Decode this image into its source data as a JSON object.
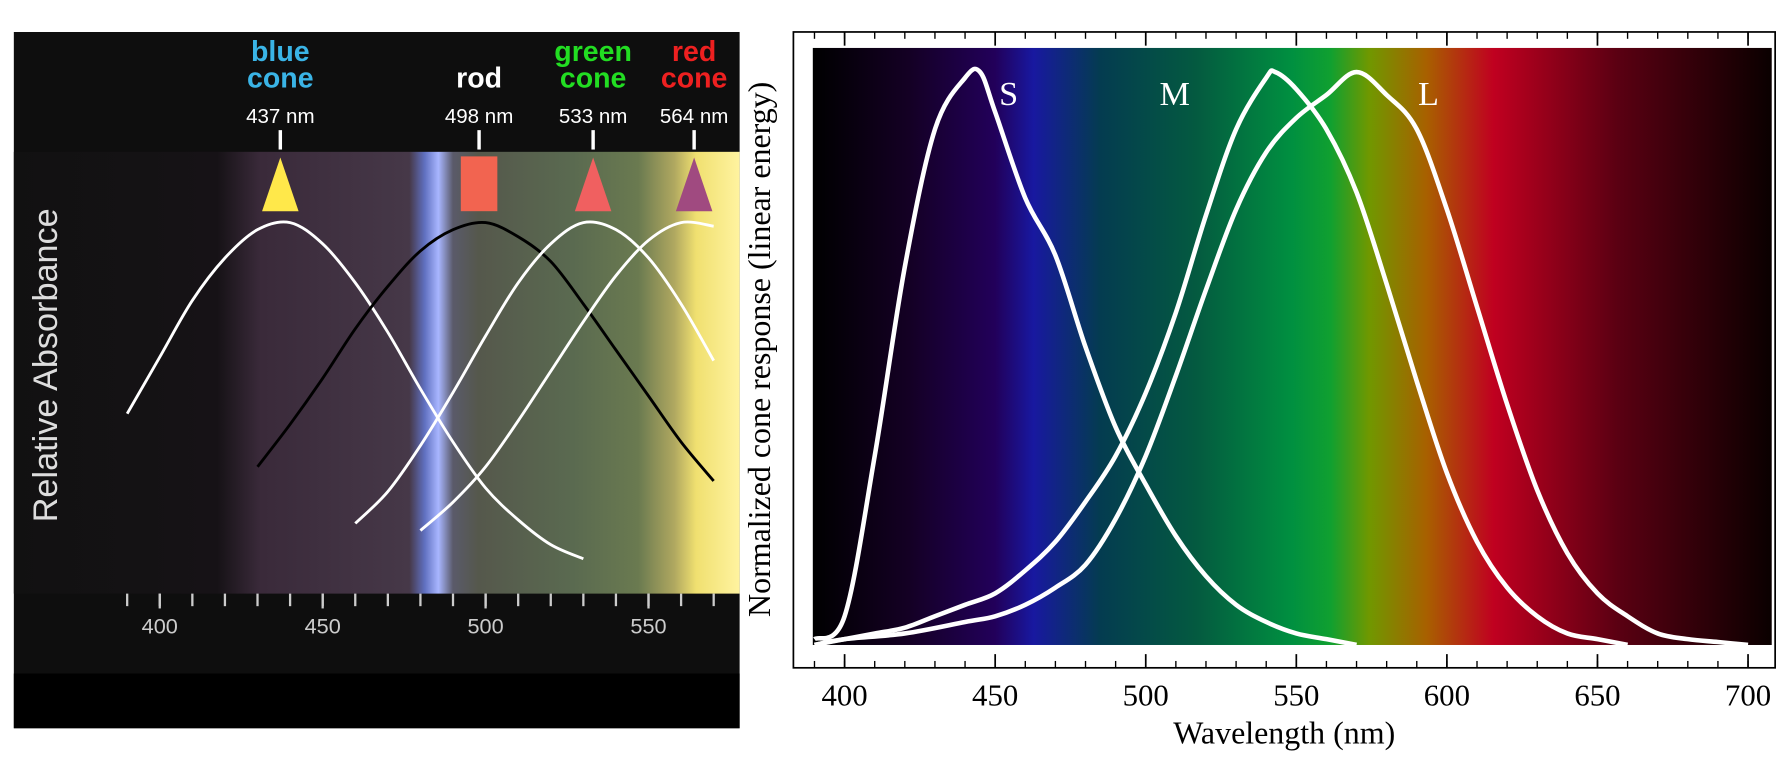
{
  "chart_data": [
    {
      "type": "line",
      "ylabel": "Relative Absorbance",
      "xlim": [
        379,
        578
      ],
      "ylim": [
        0,
        1.2
      ],
      "xticks": [
        400,
        450,
        500,
        550
      ],
      "xminorticks": [
        390,
        400,
        410,
        420,
        430,
        440,
        450,
        460,
        470,
        480,
        490,
        500,
        510,
        520,
        530,
        540,
        550,
        560,
        570
      ],
      "markers": [
        {
          "name_lines": [
            "blue",
            "cone"
          ],
          "label": "437 nm",
          "x": 437,
          "color": "#ffe84a",
          "text_color": "#3ab4e6",
          "shape": "triangle"
        },
        {
          "name_lines": [
            "rod"
          ],
          "label": "498 nm",
          "x": 498,
          "color": "#f26450",
          "text_color": "#ffffff",
          "shape": "square"
        },
        {
          "name_lines": [
            "green",
            "cone"
          ],
          "label": "533 nm",
          "x": 533,
          "color": "#f06060",
          "text_color": "#22dd22",
          "shape": "triangle"
        },
        {
          "name_lines": [
            "red",
            "cone"
          ],
          "label": "564 nm",
          "x": 564,
          "color": "#a04a80",
          "text_color": "#ee2020",
          "shape": "triangle"
        }
      ],
      "series": [
        {
          "color": "#ffffff",
          "x": [
            390,
            400,
            410,
            420,
            430,
            440,
            450,
            460,
            470,
            480,
            490,
            500,
            510,
            520,
            530
          ],
          "values": [
            0.46,
            0.62,
            0.78,
            0.9,
            0.98,
            1.0,
            0.94,
            0.83,
            0.69,
            0.53,
            0.38,
            0.25,
            0.16,
            0.09,
            0.05
          ]
        },
        {
          "color": "#000000",
          "x": [
            430,
            440,
            450,
            460,
            470,
            480,
            490,
            500,
            510,
            520,
            530,
            540,
            550,
            560,
            570
          ],
          "values": [
            0.31,
            0.43,
            0.56,
            0.7,
            0.82,
            0.92,
            0.98,
            1.0,
            0.96,
            0.89,
            0.77,
            0.64,
            0.51,
            0.38,
            0.27
          ]
        },
        {
          "color": "#ffffff",
          "x": [
            460,
            470,
            480,
            490,
            500,
            510,
            520,
            530,
            540,
            550,
            560,
            570
          ],
          "values": [
            0.15,
            0.24,
            0.37,
            0.52,
            0.68,
            0.83,
            0.94,
            1.0,
            0.98,
            0.9,
            0.77,
            0.61
          ]
        },
        {
          "color": "#ffffff",
          "x": [
            480,
            490,
            500,
            510,
            520,
            530,
            540,
            550,
            560,
            570
          ],
          "values": [
            0.13,
            0.21,
            0.31,
            0.44,
            0.58,
            0.72,
            0.85,
            0.95,
            1.0,
            0.99
          ]
        }
      ]
    },
    {
      "type": "line",
      "xlabel": "Wavelength (nm)",
      "ylabel": "Normalized cone response (linear energy)",
      "xlim": [
        383,
        709
      ],
      "ylim": [
        -0.04,
        1.07
      ],
      "xticks": [
        400,
        450,
        500,
        550,
        600,
        650,
        700
      ],
      "xminorticks": [
        390,
        400,
        410,
        420,
        430,
        440,
        450,
        460,
        470,
        480,
        490,
        500,
        510,
        520,
        530,
        540,
        550,
        560,
        570,
        580,
        590,
        600,
        610,
        620,
        630,
        640,
        650,
        660,
        670,
        680,
        690,
        700
      ],
      "series": [
        {
          "name": "S",
          "color": "#ffffff",
          "x": [
            390,
            400,
            410,
            420,
            430,
            440,
            445,
            450,
            460,
            470,
            480,
            490,
            500,
            510,
            520,
            530,
            540,
            550,
            560,
            570
          ],
          "values": [
            0.01,
            0.05,
            0.33,
            0.66,
            0.9,
            0.99,
            1.0,
            0.93,
            0.78,
            0.68,
            0.52,
            0.38,
            0.28,
            0.19,
            0.12,
            0.07,
            0.04,
            0.02,
            0.01,
            0
          ]
        },
        {
          "name": "M",
          "color": "#ffffff",
          "x": [
            390,
            400,
            410,
            420,
            430,
            440,
            450,
            460,
            470,
            480,
            490,
            500,
            510,
            520,
            530,
            540,
            543,
            550,
            560,
            570,
            580,
            590,
            600,
            610,
            620,
            630,
            640,
            650,
            660
          ],
          "values": [
            0,
            0.01,
            0.02,
            0.03,
            0.05,
            0.07,
            0.09,
            0.13,
            0.18,
            0.25,
            0.33,
            0.44,
            0.58,
            0.75,
            0.9,
            0.99,
            1.0,
            0.97,
            0.9,
            0.79,
            0.63,
            0.46,
            0.3,
            0.18,
            0.1,
            0.05,
            0.02,
            0.01,
            0
          ]
        },
        {
          "name": "L",
          "color": "#ffffff",
          "x": [
            390,
            400,
            420,
            440,
            450,
            460,
            470,
            480,
            490,
            500,
            510,
            520,
            530,
            540,
            550,
            560,
            570,
            580,
            590,
            600,
            610,
            620,
            630,
            640,
            650,
            660,
            670,
            680,
            690,
            700
          ],
          "values": [
            0,
            0.01,
            0.02,
            0.04,
            0.05,
            0.07,
            0.1,
            0.14,
            0.22,
            0.33,
            0.47,
            0.62,
            0.76,
            0.86,
            0.92,
            0.96,
            1.0,
            0.96,
            0.9,
            0.76,
            0.59,
            0.42,
            0.27,
            0.16,
            0.09,
            0.05,
            0.02,
            0.01,
            0.005,
            0
          ]
        }
      ]
    }
  ]
}
